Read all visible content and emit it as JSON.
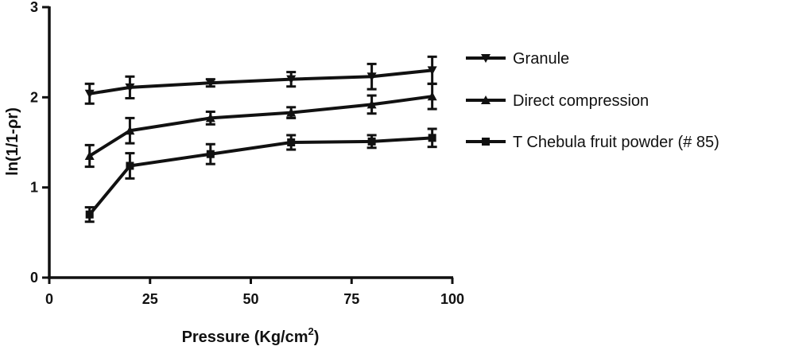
{
  "chart_data": {
    "type": "line",
    "xlabel": "Pressure (Kg/cm",
    "xlabel_sup": "2",
    "xlabel_close": ")",
    "ylabel": "ln(1/1-ρr)",
    "xlim": [
      0,
      100
    ],
    "ylim": [
      0,
      3
    ],
    "xticks": [
      "0",
      "25",
      "50",
      "75",
      "100"
    ],
    "yticks": [
      "0",
      "1",
      "2",
      "3"
    ],
    "x": [
      10,
      20,
      40,
      60,
      80,
      95
    ],
    "series": [
      {
        "name": "Granule",
        "marker": "triangle-down",
        "values": [
          2.04,
          2.11,
          2.16,
          2.2,
          2.23,
          2.3
        ],
        "errors": [
          0.11,
          0.12,
          0.04,
          0.08,
          0.14,
          0.15
        ]
      },
      {
        "name": "Direct compression",
        "marker": "triangle-up",
        "values": [
          1.35,
          1.63,
          1.77,
          1.83,
          1.92,
          2.01
        ],
        "errors": [
          0.12,
          0.14,
          0.07,
          0.06,
          0.1,
          0.14
        ]
      },
      {
        "name": "T Chebula fruit powder (# 85)",
        "marker": "square",
        "values": [
          0.7,
          1.24,
          1.37,
          1.5,
          1.51,
          1.55
        ],
        "errors": [
          0.08,
          0.14,
          0.11,
          0.08,
          0.07,
          0.1
        ]
      }
    ],
    "grid": false,
    "legend_position": "right"
  }
}
